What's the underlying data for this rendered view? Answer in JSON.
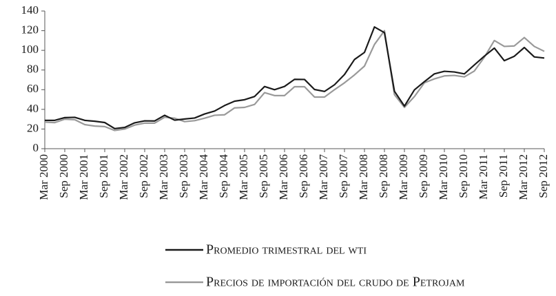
{
  "chart_data": {
    "type": "line",
    "categories": [
      "Mar 2000",
      null,
      "Sep 2000",
      null,
      "Mar 2001",
      null,
      "Sep 2001",
      null,
      "Mar 2002",
      null,
      "Sep 2002",
      null,
      "Mar 2003",
      null,
      "Sep 2003",
      null,
      "Mar 2004",
      null,
      "Sep 2004",
      null,
      "Mar 2005",
      null,
      "Sep 2005",
      null,
      "Mar 2006",
      null,
      "Sep 2006",
      null,
      "Mar 2007",
      null,
      "Sep 2007",
      null,
      "Mar 2008",
      null,
      "Sep 2008",
      null,
      "Mar 2009",
      null,
      "Sep 2009",
      null,
      "Mar 2010",
      null,
      "Sep 2010",
      null,
      "Mar 2011",
      null,
      "Sep 2011",
      null,
      "Mar 2012",
      null,
      "Sep 2012"
    ],
    "series": [
      {
        "name": "Promedio trimestral del wti",
        "color": "#1a1a1a",
        "values": [
          28.8,
          28.8,
          31.6,
          31.9,
          28.8,
          27.9,
          26.6,
          20.4,
          21.6,
          26.3,
          28.3,
          28.2,
          34,
          29,
          30.2,
          31.2,
          35.3,
          38.3,
          43.9,
          48.3,
          49.8,
          53.1,
          63.2,
          60,
          63.3,
          70.5,
          70.4,
          60.2,
          58.2,
          65,
          75.4,
          90.7,
          97.9,
          123.8,
          118,
          58.4,
          43.3,
          59.8,
          68.2,
          76.1,
          78.7,
          78,
          76.1,
          85.2,
          94.1,
          102.3,
          89.5,
          94,
          102.9,
          93.3,
          92.2
        ]
      },
      {
        "name": "Precios de importación del crudo de Petrojam",
        "color": "#999999",
        "values": [
          27,
          26.5,
          30,
          29.5,
          24.5,
          23,
          22.5,
          18.5,
          20,
          24,
          26,
          26,
          32,
          31,
          27.5,
          28.5,
          31,
          34,
          34.5,
          41.5,
          42,
          45,
          57,
          54,
          54,
          63,
          63,
          52.5,
          52.5,
          60,
          67,
          75,
          84,
          106,
          120,
          55,
          42,
          53,
          67,
          71,
          74,
          74.5,
          73,
          79,
          93,
          110,
          104,
          104.5,
          113,
          104,
          99
        ]
      }
    ],
    "ylim": [
      0,
      140
    ],
    "yticks": [
      0,
      20,
      40,
      60,
      80,
      100,
      120,
      140
    ]
  }
}
